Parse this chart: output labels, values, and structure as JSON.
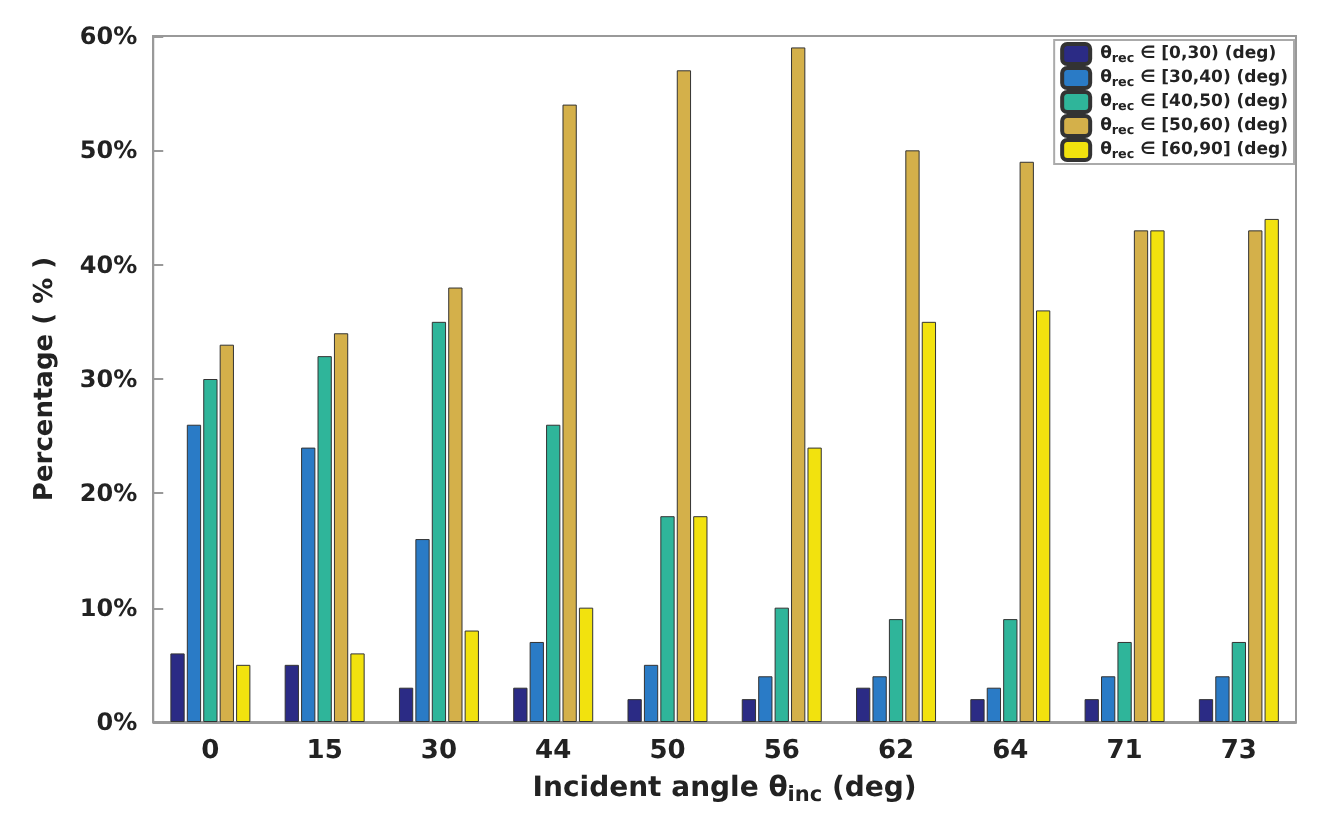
{
  "chart_data": {
    "type": "bar",
    "xlabel": "Incident angle θ$_{inc}$ (deg)",
    "ylabel": "Percentage ( % )",
    "categories": [
      "0",
      "15",
      "30",
      "44",
      "50",
      "56",
      "62",
      "64",
      "71",
      "73"
    ],
    "series": [
      {
        "name": "θ$_{rec}$ ∈ [0,30) (deg)",
        "color": "#2b2b85",
        "values": [
          6,
          5,
          3,
          3,
          2,
          2,
          3,
          2,
          2,
          2
        ]
      },
      {
        "name": "θ$_{rec}$ ∈ [30,40) (deg)",
        "color": "#2a7bc6",
        "values": [
          26,
          24,
          16,
          7,
          5,
          4,
          4,
          3,
          4,
          4
        ]
      },
      {
        "name": "θ$_{rec}$ ∈ [40,50) (deg)",
        "color": "#2fb59a",
        "values": [
          30,
          32,
          35,
          26,
          18,
          10,
          9,
          9,
          7,
          7
        ]
      },
      {
        "name": "θ$_{rec}$ ∈ [50,60) (deg)",
        "color": "#d4b04a",
        "values": [
          33,
          34,
          38,
          54,
          57,
          59,
          50,
          49,
          43,
          43
        ]
      },
      {
        "name": "θ$_{rec}$ ∈ [60,90] (deg)",
        "color": "#f2e20e",
        "values": [
          5,
          6,
          8,
          10,
          18,
          24,
          35,
          36,
          43,
          44
        ]
      }
    ],
    "ylim": [
      0,
      60
    ],
    "yticks": [
      {
        "value": 0,
        "label": "0%"
      },
      {
        "value": 10,
        "label": "10%"
      },
      {
        "value": 20,
        "label": "20%"
      },
      {
        "value": 30,
        "label": "30%"
      },
      {
        "value": 40,
        "label": "40%"
      },
      {
        "value": 50,
        "label": "50%"
      },
      {
        "value": 60,
        "label": "60%"
      }
    ],
    "grid": false,
    "legend": "top right"
  }
}
